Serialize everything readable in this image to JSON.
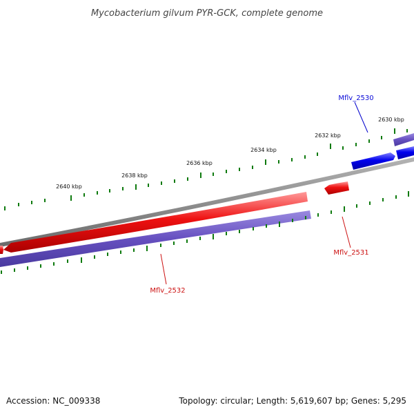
{
  "title": "Mycobacterium gilvum PYR-GCK, complete genome",
  "ruler": {
    "labels": [
      "2640 kbp",
      "2638 kbp",
      "2636 kbp",
      "2634 kbp",
      "2632 kbp",
      "2630 kbp"
    ]
  },
  "genes": [
    {
      "name": "Mflv_2530",
      "strand": "forward",
      "color": "#0a0ad8"
    },
    {
      "name": "Mflv_2531",
      "strand": "reverse",
      "color": "#cc1111"
    },
    {
      "name": "Mflv_2532",
      "strand": "reverse",
      "color": "#cc1111"
    }
  ],
  "colors": {
    "forward_cds": "#0000dd",
    "reverse_cds": "#ee0000",
    "orf_lane": "#6655bb",
    "backbone": "#808080",
    "ticks": "#0e7a0e"
  },
  "footer": {
    "accession": "Accession: NC_009338",
    "summary": "Topology: circular; Length: 5,619,607 bp; Genes: 5,295"
  }
}
